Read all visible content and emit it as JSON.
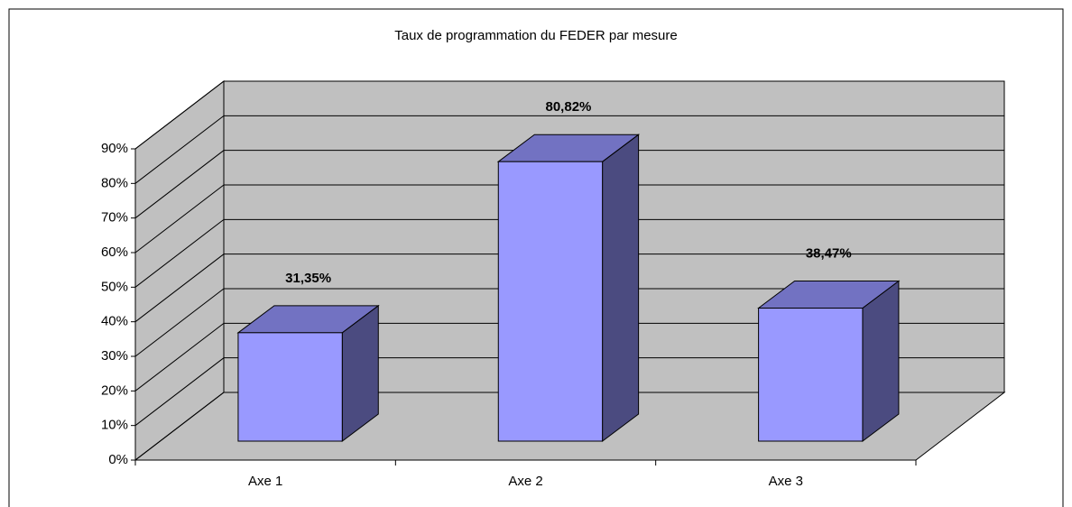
{
  "chart_data": {
    "type": "bar3d",
    "title": "Taux de programmation du FEDER par mesure",
    "categories": [
      "Axe 1",
      "Axe 2",
      "Axe 3"
    ],
    "values": [
      31.35,
      80.82,
      38.47
    ],
    "value_labels": [
      "31,35%",
      "80,82%",
      "38,47%"
    ],
    "color": "#9999ff",
    "ylim": [
      0,
      90
    ],
    "yticks": [
      {
        "value": 0,
        "label": "0%"
      },
      {
        "value": 10,
        "label": "10%"
      },
      {
        "value": 20,
        "label": "20%"
      },
      {
        "value": 30,
        "label": "30%"
      },
      {
        "value": 40,
        "label": "40%"
      },
      {
        "value": 50,
        "label": "50%"
      },
      {
        "value": 60,
        "label": "60%"
      },
      {
        "value": 70,
        "label": "70%"
      },
      {
        "value": 80,
        "label": "80%"
      },
      {
        "value": 90,
        "label": "90%"
      }
    ],
    "grid": true
  }
}
